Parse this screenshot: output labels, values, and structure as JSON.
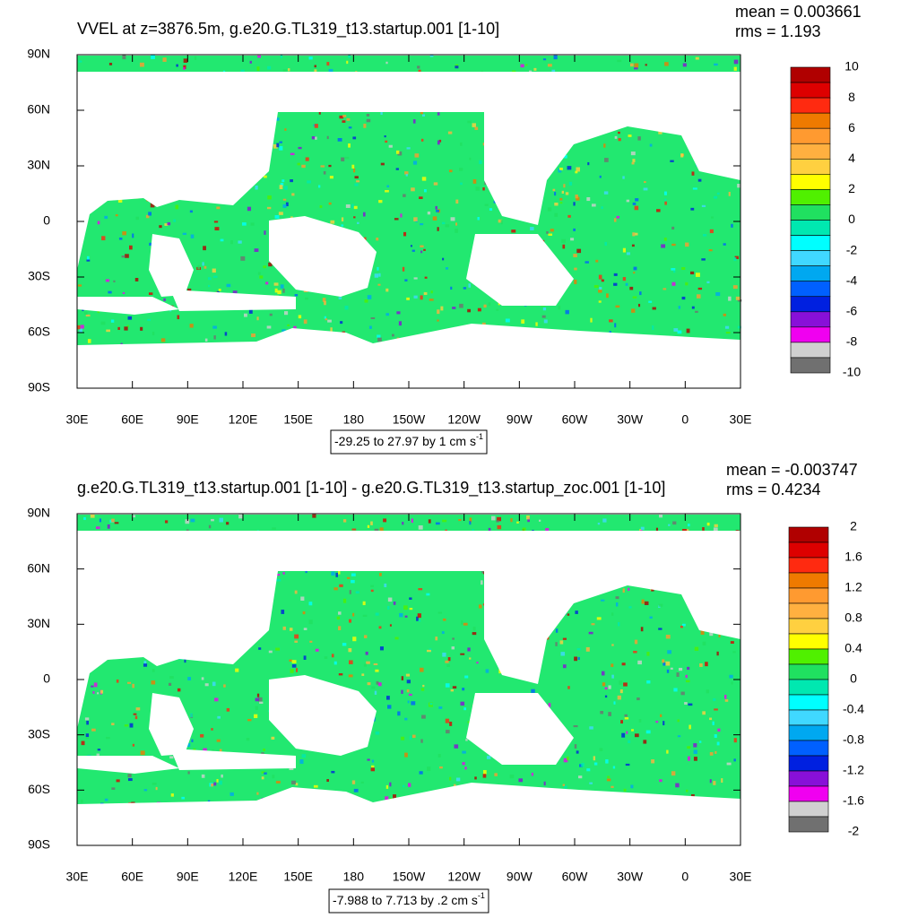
{
  "maps": [
    {
      "title": "VVEL at z=3876.5m, g.e20.G.TL319_t13.startup.001 [1-10]",
      "mean_label": "mean = 0.003661",
      "rms_label": "rms = 1.193",
      "xlim": [
        30,
        390
      ],
      "ylim": [
        -90,
        90
      ],
      "xticks": [
        {
          "value": 30,
          "label": "30E"
        },
        {
          "value": 60,
          "label": "60E"
        },
        {
          "value": 90,
          "label": "90E"
        },
        {
          "value": 120,
          "label": "120E"
        },
        {
          "value": 150,
          "label": "150E"
        },
        180,
        {
          "value": 210,
          "label": "150W"
        },
        {
          "value": 240,
          "label": "120W"
        },
        {
          "value": 270,
          "label": "90W"
        },
        {
          "value": 300,
          "label": "60W"
        },
        {
          "value": 330,
          "label": "30W"
        },
        {
          "value": 360,
          "label": "0"
        },
        {
          "value": 390,
          "label": "30E"
        }
      ],
      "yticks": [
        {
          "value": 90,
          "label": "90N"
        },
        {
          "value": 60,
          "label": "60N"
        },
        {
          "value": 30,
          "label": "30N"
        },
        0,
        {
          "value": -30,
          "label": "30S"
        },
        {
          "value": -60,
          "label": "60S"
        },
        {
          "value": -90,
          "label": "90S"
        }
      ],
      "colorbar": {
        "labels": [
          10,
          8,
          6,
          4,
          2,
          0,
          -2,
          -4,
          -6,
          -8,
          -10
        ],
        "colors": [
          "#b00000",
          "#dd0000",
          "#ff2a10",
          "#ef7a00",
          "#ff9a30",
          "#ffb040",
          "#ffd040",
          "#ffff00",
          "#50f000",
          "#20e060",
          "#00e8b0",
          "#00ffff",
          "#40d8ff",
          "#00a8f0",
          "#0060ff",
          "#0020e0",
          "#8810d8",
          "#f000f0",
          "#d0d0d0",
          "#707070"
        ]
      },
      "info": {
        "text": "-29.25 to 27.97 by 1 cm s",
        "sup": "-1"
      }
    },
    {
      "title": "g.e20.G.TL319_t13.startup.001 [1-10] - g.e20.G.TL319_t13.startup_zoc.001 [1-10]",
      "mean_label": "mean = -0.003747",
      "rms_label": "rms = 0.4234",
      "xlim": [
        30,
        390
      ],
      "ylim": [
        -90,
        90
      ],
      "xticks": [
        {
          "value": 30,
          "label": "30E"
        },
        {
          "value": 60,
          "label": "60E"
        },
        {
          "value": 90,
          "label": "90E"
        },
        {
          "value": 120,
          "label": "120E"
        },
        {
          "value": 150,
          "label": "150E"
        },
        180,
        {
          "value": 210,
          "label": "150W"
        },
        {
          "value": 240,
          "label": "120W"
        },
        {
          "value": 270,
          "label": "90W"
        },
        {
          "value": 300,
          "label": "60W"
        },
        {
          "value": 330,
          "label": "30W"
        },
        {
          "value": 360,
          "label": "0"
        },
        {
          "value": 390,
          "label": "30E"
        }
      ],
      "yticks": [
        {
          "value": 90,
          "label": "90N"
        },
        {
          "value": 60,
          "label": "60N"
        },
        {
          "value": 30,
          "label": "30N"
        },
        0,
        {
          "value": -30,
          "label": "30S"
        },
        {
          "value": -60,
          "label": "60S"
        },
        {
          "value": -90,
          "label": "90S"
        }
      ],
      "colorbar": {
        "labels": [
          2,
          1.6,
          1.2,
          0.8,
          0.4,
          0,
          -0.4,
          -0.8,
          -1.2,
          -1.6,
          -2
        ],
        "colors": [
          "#b00000",
          "#dd0000",
          "#ff2a10",
          "#ef7a00",
          "#ff9a30",
          "#ffb040",
          "#ffd040",
          "#ffff00",
          "#50f000",
          "#20e060",
          "#00e8b0",
          "#00ffff",
          "#40d8ff",
          "#00a8f0",
          "#0060ff",
          "#0020e0",
          "#8810d8",
          "#f000f0",
          "#d0d0d0",
          "#707070"
        ]
      },
      "info": {
        "text": "-7.988 to 7.713 by .2 cm s",
        "sup": "-1"
      }
    }
  ]
}
